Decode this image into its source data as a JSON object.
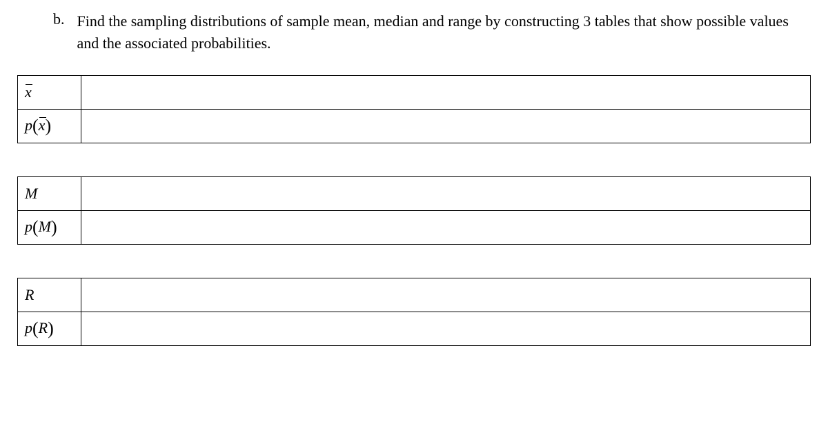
{
  "question": {
    "marker": "b.",
    "text": "Find the sampling distributions of sample mean, median and range by constructing 3 tables that show possible values and the associated probabilities."
  },
  "tables": [
    {
      "row1_label_html": "<span class='math-var xbar'>x</span>",
      "row1_value": "",
      "row2_label_html": "<span class='math-var'>p</span><span class='paren'>(</span><span class='math-var xbar'>x</span><span class='paren'>)</span>",
      "row2_value": ""
    },
    {
      "row1_label_html": "<span class='math-var'>M</span>",
      "row1_value": "",
      "row2_label_html": "<span class='math-var'>p</span><span class='paren'>(</span><span class='math-var'>M</span><span class='paren'>)</span>",
      "row2_value": ""
    },
    {
      "row1_label_html": "<span class='math-var'>R</span>",
      "row1_value": "",
      "row2_label_html": "<span class='math-var'>p</span><span class='paren'>(</span><span class='math-var'>R</span><span class='paren'>)</span>",
      "row2_value": ""
    }
  ]
}
